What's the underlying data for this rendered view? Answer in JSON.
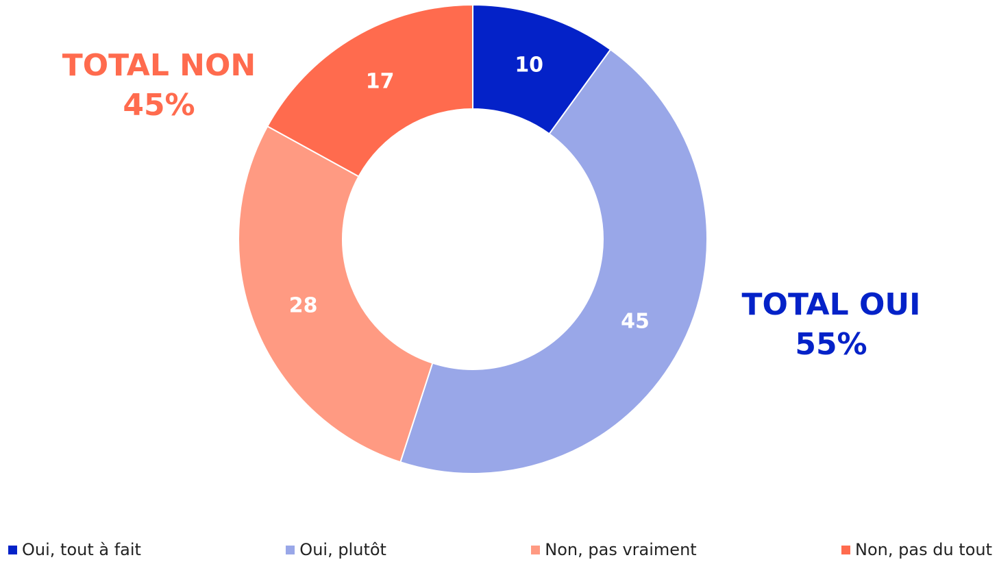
{
  "chart_data": {
    "type": "donut",
    "categories": [
      "Oui, tout à fait",
      "Oui, plutôt",
      "Non, pas vraiment",
      "Non, pas du tout"
    ],
    "values": [
      10,
      45,
      28,
      17
    ],
    "colors": [
      "#0422c8",
      "#99a7e8",
      "#ff9a82",
      "#ff6b4e"
    ],
    "annotations": [
      {
        "lines": [
          "TOTAL NON",
          "45%"
        ],
        "color": "#ff6b4e"
      },
      {
        "lines": [
          "TOTAL OUI",
          "55%"
        ],
        "color": "#0422c8"
      }
    ],
    "legend": "bottom"
  }
}
